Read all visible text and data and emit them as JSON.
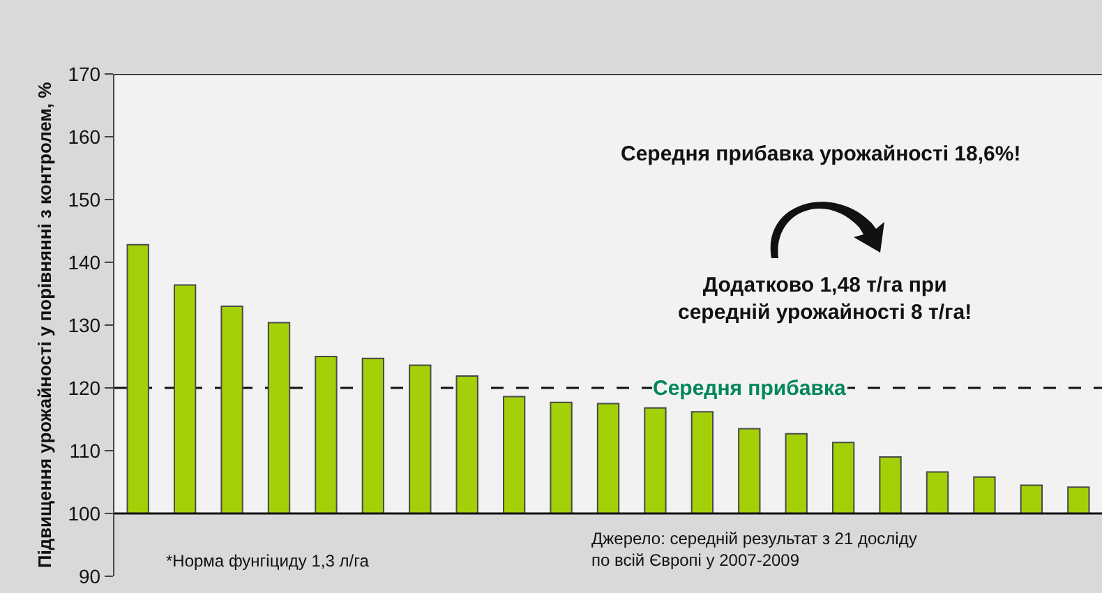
{
  "chart_data": {
    "type": "bar",
    "ylabel": "Підвищення урожайності у порівнянні з контролем, %",
    "categories": [
      null,
      null,
      null,
      null,
      null,
      null,
      null,
      null,
      null,
      null,
      null,
      null,
      null,
      null,
      null,
      null,
      null,
      null,
      null,
      null,
      null
    ],
    "base": [
      100,
      100,
      100,
      100,
      100,
      100,
      100,
      100,
      100,
      100,
      100,
      100,
      100,
      100,
      100,
      100,
      100,
      100,
      100,
      100,
      100
    ],
    "values": [
      42.8,
      36.4,
      33,
      30.4,
      25,
      24.7,
      23.6,
      21.9,
      18.6,
      17.7,
      17.5,
      16.8,
      16.2,
      13.5,
      12.7,
      11.3,
      9,
      6.6,
      5.8,
      4.5,
      4.2
    ],
    "color": "#a4d007",
    "ylim": [
      90,
      170
    ],
    "yticks": [
      90,
      100,
      110,
      120,
      130,
      140,
      150,
      160,
      170
    ],
    "grid": false,
    "ref_lines": [
      {
        "axis": "y",
        "value": 120,
        "label": "Середня прибавка",
        "color": "#111111",
        "line_style": "dashed"
      },
      {
        "axis": "y",
        "value": 100,
        "color": "#111111",
        "line_style": "solid"
      }
    ],
    "bands": [
      {
        "axis": "y",
        "from": 90,
        "to": 100,
        "color": "#d9d9d9"
      }
    ],
    "annotations": [
      "Середня прибавка урожайності 18,6%!",
      "Додатково 1,48 т/га при\nсередній урожайності 8 т/га!",
      "*Норма фунгіциду 1,3 л/га",
      "Джерело: середній результат з 21 досліду\nпо всій Європі у 2007-2009"
    ]
  }
}
